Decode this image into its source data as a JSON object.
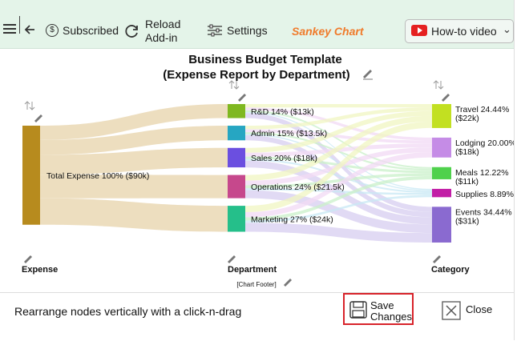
{
  "toolbar": {
    "subscribed_label": "Subscribed",
    "reload_label_line1": "Reload",
    "reload_label_line2": "Add-in",
    "settings_label": "Settings",
    "brand": "Sankey Chart",
    "howto_label": "How-to video",
    "howto_chevron": "⌄",
    "brand_color": "#f07a2a"
  },
  "chart": {
    "title_line1": "Business Budget Template",
    "title_line2": "(Expense Report by Department)",
    "footer": "[Chart Footer]"
  },
  "chart_data": {
    "type": "sankey",
    "title": "Business Budget Template (Expense Report by Department)",
    "levels": [
      "Expense",
      "Department",
      "Category"
    ],
    "nodes": {
      "expense": [
        {
          "id": "total",
          "label": "Total Expense 100% ($90k)",
          "value": 90,
          "color": "#b78b1e"
        }
      ],
      "department": [
        {
          "id": "rd",
          "label": "R&D 14% ($13k)",
          "value": 13,
          "color": "#7fb820"
        },
        {
          "id": "admin",
          "label": "Admin 15% ($13.5k)",
          "value": 13.5,
          "color": "#26a6c2"
        },
        {
          "id": "sales",
          "label": "Sales 20% ($18k)",
          "value": 18,
          "color": "#6b4fe0"
        },
        {
          "id": "ops",
          "label": "Operations 24% ($21.5k)",
          "value": 21.5,
          "color": "#c6488c"
        },
        {
          "id": "mkt",
          "label": "Marketing 27% ($24k)",
          "value": 24,
          "color": "#25bf8a"
        }
      ],
      "category": [
        {
          "id": "travel",
          "label1": "Travel 24.44%",
          "label2": "($22k)",
          "value": 22,
          "color": "#c2e021"
        },
        {
          "id": "lodging",
          "label1": "Lodging 20.00%",
          "label2": "($18k)",
          "value": 18,
          "color": "#c58ce6"
        },
        {
          "id": "meals",
          "label1": "Meals 12.22%",
          "label2": "($11k)",
          "value": 11,
          "color": "#4fd14c"
        },
        {
          "id": "supplies",
          "label1": "Supplies 8.89%",
          "label2": "",
          "value": 8,
          "color": "#c21ea6"
        },
        {
          "id": "events",
          "label1": "Events 34.44%",
          "label2": "($31k)",
          "value": 31,
          "color": "#8a6ad0"
        }
      ]
    },
    "link_color_level1": "#ecdcbc",
    "link_colors_level2": [
      "#f0f5c2",
      "#f2d9f4",
      "#c9f0c9",
      "#c8e8f4",
      "#d7cdf0"
    ]
  },
  "footer": {
    "hint": "Rearrange nodes vertically with a click-n-drag",
    "save_line1": "Save",
    "save_line2": "Changes",
    "close_label": "Close"
  }
}
